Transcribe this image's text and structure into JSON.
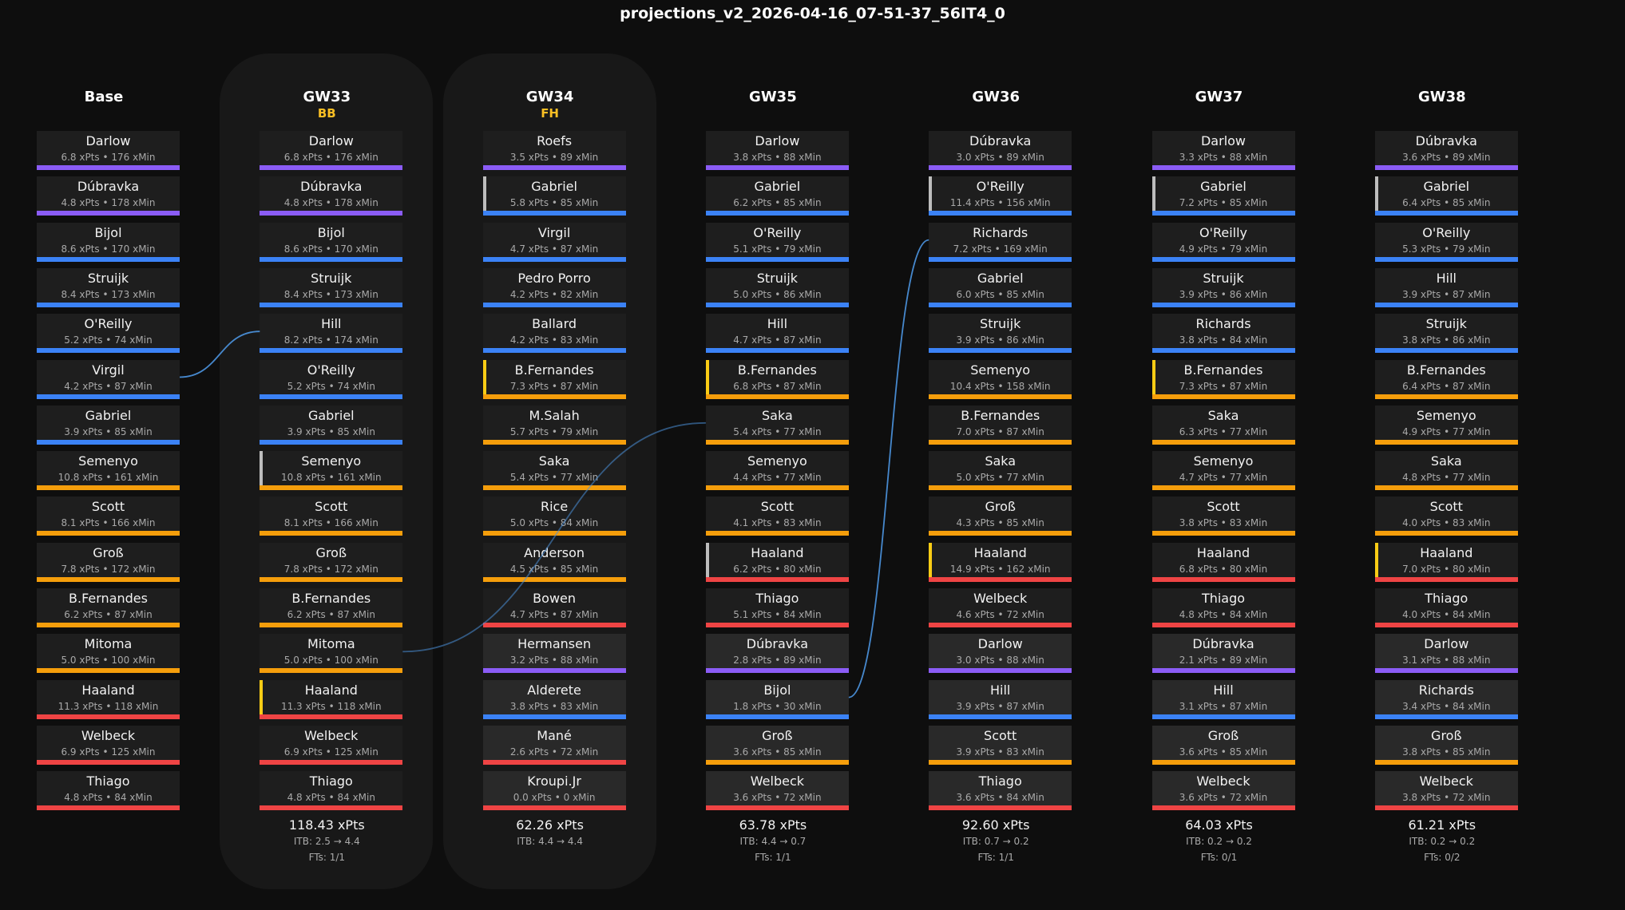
{
  "title": "projections_v2_2026-04-16_07-51-37_56IT4_0",
  "colors": {
    "GK": "#8b5cf6",
    "DEF": "#3b82f6",
    "MID": "#f59e0b",
    "FWD": "#ef4444",
    "captain": "#facc15",
    "vice": "#bdbdbd",
    "chip": "#fbbf24",
    "transfer": "#4a8fd8"
  },
  "columns": [
    {
      "label": "Base",
      "chip": "",
      "panel": false,
      "total": "",
      "itb": "",
      "fts": "",
      "players": [
        {
          "name": "Darlow",
          "stats": "6.8 xPts • 176 xMin",
          "pos": "GK"
        },
        {
          "name": "Dúbravka",
          "stats": "4.8 xPts • 178 xMin",
          "pos": "GK"
        },
        {
          "name": "Bijol",
          "stats": "8.6 xPts • 170 xMin",
          "pos": "DEF"
        },
        {
          "name": "Struijk",
          "stats": "8.4 xPts • 173 xMin",
          "pos": "DEF"
        },
        {
          "name": "O'Reilly",
          "stats": "5.2 xPts • 74 xMin",
          "pos": "DEF"
        },
        {
          "name": "Virgil",
          "stats": "4.2 xPts • 87 xMin",
          "pos": "DEF"
        },
        {
          "name": "Gabriel",
          "stats": "3.9 xPts • 85 xMin",
          "pos": "DEF"
        },
        {
          "name": "Semenyo",
          "stats": "10.8 xPts • 161 xMin",
          "pos": "MID"
        },
        {
          "name": "Scott",
          "stats": "8.1 xPts • 166 xMin",
          "pos": "MID"
        },
        {
          "name": "Groß",
          "stats": "7.8 xPts • 172 xMin",
          "pos": "MID"
        },
        {
          "name": "B.Fernandes",
          "stats": "6.2 xPts • 87 xMin",
          "pos": "MID"
        },
        {
          "name": "Mitoma",
          "stats": "5.0 xPts • 100 xMin",
          "pos": "MID"
        },
        {
          "name": "Haaland",
          "stats": "11.3 xPts • 118 xMin",
          "pos": "FWD"
        },
        {
          "name": "Welbeck",
          "stats": "6.9 xPts • 125 xMin",
          "pos": "FWD"
        },
        {
          "name": "Thiago",
          "stats": "4.8 xPts • 84 xMin",
          "pos": "FWD"
        }
      ]
    },
    {
      "label": "GW33",
      "chip": "BB",
      "panel": true,
      "total": "118.43 xPts",
      "itb": "ITB: 2.5 → 4.4",
      "fts": "FTs: 1/1",
      "players": [
        {
          "name": "Darlow",
          "stats": "6.8 xPts • 176 xMin",
          "pos": "GK"
        },
        {
          "name": "Dúbravka",
          "stats": "4.8 xPts • 178 xMin",
          "pos": "GK"
        },
        {
          "name": "Bijol",
          "stats": "8.6 xPts • 170 xMin",
          "pos": "DEF"
        },
        {
          "name": "Struijk",
          "stats": "8.4 xPts • 173 xMin",
          "pos": "DEF"
        },
        {
          "name": "Hill",
          "stats": "8.2 xPts • 174 xMin",
          "pos": "DEF"
        },
        {
          "name": "O'Reilly",
          "stats": "5.2 xPts • 74 xMin",
          "pos": "DEF"
        },
        {
          "name": "Gabriel",
          "stats": "3.9 xPts • 85 xMin",
          "pos": "DEF"
        },
        {
          "name": "Semenyo",
          "stats": "10.8 xPts • 161 xMin",
          "pos": "MID",
          "role": "vice"
        },
        {
          "name": "Scott",
          "stats": "8.1 xPts • 166 xMin",
          "pos": "MID"
        },
        {
          "name": "Groß",
          "stats": "7.8 xPts • 172 xMin",
          "pos": "MID"
        },
        {
          "name": "B.Fernandes",
          "stats": "6.2 xPts • 87 xMin",
          "pos": "MID"
        },
        {
          "name": "Mitoma",
          "stats": "5.0 xPts • 100 xMin",
          "pos": "MID"
        },
        {
          "name": "Haaland",
          "stats": "11.3 xPts • 118 xMin",
          "pos": "FWD",
          "role": "captain"
        },
        {
          "name": "Welbeck",
          "stats": "6.9 xPts • 125 xMin",
          "pos": "FWD"
        },
        {
          "name": "Thiago",
          "stats": "4.8 xPts • 84 xMin",
          "pos": "FWD"
        }
      ]
    },
    {
      "label": "GW34",
      "chip": "FH",
      "panel": true,
      "total": "62.26 xPts",
      "itb": "ITB: 4.4 → 4.4",
      "fts": "",
      "players": [
        {
          "name": "Roefs",
          "stats": "3.5 xPts • 89 xMin",
          "pos": "GK"
        },
        {
          "name": "Gabriel",
          "stats": "5.8 xPts • 85 xMin",
          "pos": "DEF",
          "role": "vice"
        },
        {
          "name": "Virgil",
          "stats": "4.7 xPts • 87 xMin",
          "pos": "DEF"
        },
        {
          "name": "Pedro Porro",
          "stats": "4.2 xPts • 82 xMin",
          "pos": "DEF"
        },
        {
          "name": "Ballard",
          "stats": "4.2 xPts • 83 xMin",
          "pos": "DEF"
        },
        {
          "name": "B.Fernandes",
          "stats": "7.3 xPts • 87 xMin",
          "pos": "MID",
          "role": "captain"
        },
        {
          "name": "M.Salah",
          "stats": "5.7 xPts • 79 xMin",
          "pos": "MID"
        },
        {
          "name": "Saka",
          "stats": "5.4 xPts • 77 xMin",
          "pos": "MID"
        },
        {
          "name": "Rice",
          "stats": "5.0 xPts • 84 xMin",
          "pos": "MID"
        },
        {
          "name": "Anderson",
          "stats": "4.5 xPts • 85 xMin",
          "pos": "MID"
        },
        {
          "name": "Bowen",
          "stats": "4.7 xPts • 87 xMin",
          "pos": "FWD"
        },
        {
          "name": "Hermansen",
          "stats": "3.2 xPts • 88 xMin",
          "pos": "GK",
          "bench": true
        },
        {
          "name": "Alderete",
          "stats": "3.8 xPts • 83 xMin",
          "pos": "DEF",
          "bench": true
        },
        {
          "name": "Mané",
          "stats": "2.6 xPts • 72 xMin",
          "pos": "FWD",
          "bench": true
        },
        {
          "name": "Kroupi.Jr",
          "stats": "0.0 xPts • 0 xMin",
          "pos": "FWD",
          "bench": true
        }
      ]
    },
    {
      "label": "GW35",
      "chip": "",
      "panel": false,
      "total": "63.78 xPts",
      "itb": "ITB: 4.4 → 0.7",
      "fts": "FTs: 1/1",
      "players": [
        {
          "name": "Darlow",
          "stats": "3.8 xPts • 88 xMin",
          "pos": "GK"
        },
        {
          "name": "Gabriel",
          "stats": "6.2 xPts • 85 xMin",
          "pos": "DEF"
        },
        {
          "name": "O'Reilly",
          "stats": "5.1 xPts • 79 xMin",
          "pos": "DEF"
        },
        {
          "name": "Struijk",
          "stats": "5.0 xPts • 86 xMin",
          "pos": "DEF"
        },
        {
          "name": "Hill",
          "stats": "4.7 xPts • 87 xMin",
          "pos": "DEF"
        },
        {
          "name": "B.Fernandes",
          "stats": "6.8 xPts • 87 xMin",
          "pos": "MID",
          "role": "captain"
        },
        {
          "name": "Saka",
          "stats": "5.4 xPts • 77 xMin",
          "pos": "MID"
        },
        {
          "name": "Semenyo",
          "stats": "4.4 xPts • 77 xMin",
          "pos": "MID"
        },
        {
          "name": "Scott",
          "stats": "4.1 xPts • 83 xMin",
          "pos": "MID"
        },
        {
          "name": "Haaland",
          "stats": "6.2 xPts • 80 xMin",
          "pos": "FWD",
          "role": "vice"
        },
        {
          "name": "Thiago",
          "stats": "5.1 xPts • 84 xMin",
          "pos": "FWD"
        },
        {
          "name": "Dúbravka",
          "stats": "2.8 xPts • 89 xMin",
          "pos": "GK",
          "bench": true
        },
        {
          "name": "Bijol",
          "stats": "1.8 xPts • 30 xMin",
          "pos": "DEF",
          "bench": true
        },
        {
          "name": "Groß",
          "stats": "3.6 xPts • 85 xMin",
          "pos": "MID",
          "bench": true
        },
        {
          "name": "Welbeck",
          "stats": "3.6 xPts • 72 xMin",
          "pos": "FWD",
          "bench": true
        }
      ]
    },
    {
      "label": "GW36",
      "chip": "",
      "panel": false,
      "total": "92.60 xPts",
      "itb": "ITB: 0.7 → 0.2",
      "fts": "FTs: 1/1",
      "players": [
        {
          "name": "Dúbravka",
          "stats": "3.0 xPts • 89 xMin",
          "pos": "GK"
        },
        {
          "name": "O'Reilly",
          "stats": "11.4 xPts • 156 xMin",
          "pos": "DEF",
          "role": "vice"
        },
        {
          "name": "Richards",
          "stats": "7.2 xPts • 169 xMin",
          "pos": "DEF"
        },
        {
          "name": "Gabriel",
          "stats": "6.0 xPts • 85 xMin",
          "pos": "DEF"
        },
        {
          "name": "Struijk",
          "stats": "3.9 xPts • 86 xMin",
          "pos": "DEF"
        },
        {
          "name": "Semenyo",
          "stats": "10.4 xPts • 158 xMin",
          "pos": "MID"
        },
        {
          "name": "B.Fernandes",
          "stats": "7.0 xPts • 87 xMin",
          "pos": "MID"
        },
        {
          "name": "Saka",
          "stats": "5.0 xPts • 77 xMin",
          "pos": "MID"
        },
        {
          "name": "Groß",
          "stats": "4.3 xPts • 85 xMin",
          "pos": "MID"
        },
        {
          "name": "Haaland",
          "stats": "14.9 xPts • 162 xMin",
          "pos": "FWD",
          "role": "captain"
        },
        {
          "name": "Welbeck",
          "stats": "4.6 xPts • 72 xMin",
          "pos": "FWD"
        },
        {
          "name": "Darlow",
          "stats": "3.0 xPts • 88 xMin",
          "pos": "GK",
          "bench": true
        },
        {
          "name": "Hill",
          "stats": "3.9 xPts • 87 xMin",
          "pos": "DEF",
          "bench": true
        },
        {
          "name": "Scott",
          "stats": "3.9 xPts • 83 xMin",
          "pos": "MID",
          "bench": true
        },
        {
          "name": "Thiago",
          "stats": "3.6 xPts • 84 xMin",
          "pos": "FWD",
          "bench": true
        }
      ]
    },
    {
      "label": "GW37",
      "chip": "",
      "panel": false,
      "total": "64.03 xPts",
      "itb": "ITB: 0.2 → 0.2",
      "fts": "FTs: 0/1",
      "players": [
        {
          "name": "Darlow",
          "stats": "3.3 xPts • 88 xMin",
          "pos": "GK"
        },
        {
          "name": "Gabriel",
          "stats": "7.2 xPts • 85 xMin",
          "pos": "DEF",
          "role": "vice"
        },
        {
          "name": "O'Reilly",
          "stats": "4.9 xPts • 79 xMin",
          "pos": "DEF"
        },
        {
          "name": "Struijk",
          "stats": "3.9 xPts • 86 xMin",
          "pos": "DEF"
        },
        {
          "name": "Richards",
          "stats": "3.8 xPts • 84 xMin",
          "pos": "DEF"
        },
        {
          "name": "B.Fernandes",
          "stats": "7.3 xPts • 87 xMin",
          "pos": "MID",
          "role": "captain"
        },
        {
          "name": "Saka",
          "stats": "6.3 xPts • 77 xMin",
          "pos": "MID"
        },
        {
          "name": "Semenyo",
          "stats": "4.7 xPts • 77 xMin",
          "pos": "MID"
        },
        {
          "name": "Scott",
          "stats": "3.8 xPts • 83 xMin",
          "pos": "MID"
        },
        {
          "name": "Haaland",
          "stats": "6.8 xPts • 80 xMin",
          "pos": "FWD"
        },
        {
          "name": "Thiago",
          "stats": "4.8 xPts • 84 xMin",
          "pos": "FWD"
        },
        {
          "name": "Dúbravka",
          "stats": "2.1 xPts • 89 xMin",
          "pos": "GK",
          "bench": true
        },
        {
          "name": "Hill",
          "stats": "3.1 xPts • 87 xMin",
          "pos": "DEF",
          "bench": true
        },
        {
          "name": "Groß",
          "stats": "3.6 xPts • 85 xMin",
          "pos": "MID",
          "bench": true
        },
        {
          "name": "Welbeck",
          "stats": "3.6 xPts • 72 xMin",
          "pos": "FWD",
          "bench": true
        }
      ]
    },
    {
      "label": "GW38",
      "chip": "",
      "panel": false,
      "total": "61.21 xPts",
      "itb": "ITB: 0.2 → 0.2",
      "fts": "FTs: 0/2",
      "players": [
        {
          "name": "Dúbravka",
          "stats": "3.6 xPts • 89 xMin",
          "pos": "GK"
        },
        {
          "name": "Gabriel",
          "stats": "6.4 xPts • 85 xMin",
          "pos": "DEF",
          "role": "vice"
        },
        {
          "name": "O'Reilly",
          "stats": "5.3 xPts • 79 xMin",
          "pos": "DEF"
        },
        {
          "name": "Hill",
          "stats": "3.9 xPts • 87 xMin",
          "pos": "DEF"
        },
        {
          "name": "Struijk",
          "stats": "3.8 xPts • 86 xMin",
          "pos": "DEF"
        },
        {
          "name": "B.Fernandes",
          "stats": "6.4 xPts • 87 xMin",
          "pos": "MID"
        },
        {
          "name": "Semenyo",
          "stats": "4.9 xPts • 77 xMin",
          "pos": "MID"
        },
        {
          "name": "Saka",
          "stats": "4.8 xPts • 77 xMin",
          "pos": "MID"
        },
        {
          "name": "Scott",
          "stats": "4.0 xPts • 83 xMin",
          "pos": "MID"
        },
        {
          "name": "Haaland",
          "stats": "7.0 xPts • 80 xMin",
          "pos": "FWD",
          "role": "captain"
        },
        {
          "name": "Thiago",
          "stats": "4.0 xPts • 84 xMin",
          "pos": "FWD"
        },
        {
          "name": "Darlow",
          "stats": "3.1 xPts • 88 xMin",
          "pos": "GK",
          "bench": true
        },
        {
          "name": "Richards",
          "stats": "3.4 xPts • 84 xMin",
          "pos": "DEF",
          "bench": true
        },
        {
          "name": "Groß",
          "stats": "3.8 xPts • 85 xMin",
          "pos": "MID",
          "bench": true
        },
        {
          "name": "Welbeck",
          "stats": "3.8 xPts • 72 xMin",
          "pos": "FWD",
          "bench": true
        }
      ]
    }
  ],
  "transfers": [
    {
      "out": "Virgil",
      "in": "Hill",
      "from_col": 0,
      "from_row": 5,
      "to_col": 1,
      "to_row": 4
    },
    {
      "out": "Mitoma",
      "in": "Saka",
      "from_col": 1,
      "from_row": 11,
      "to_col": 3,
      "to_row": 6
    },
    {
      "out": "Bijol",
      "in": "Richards",
      "from_col": 3,
      "from_row": 12,
      "to_col": 4,
      "to_row": 2
    }
  ]
}
